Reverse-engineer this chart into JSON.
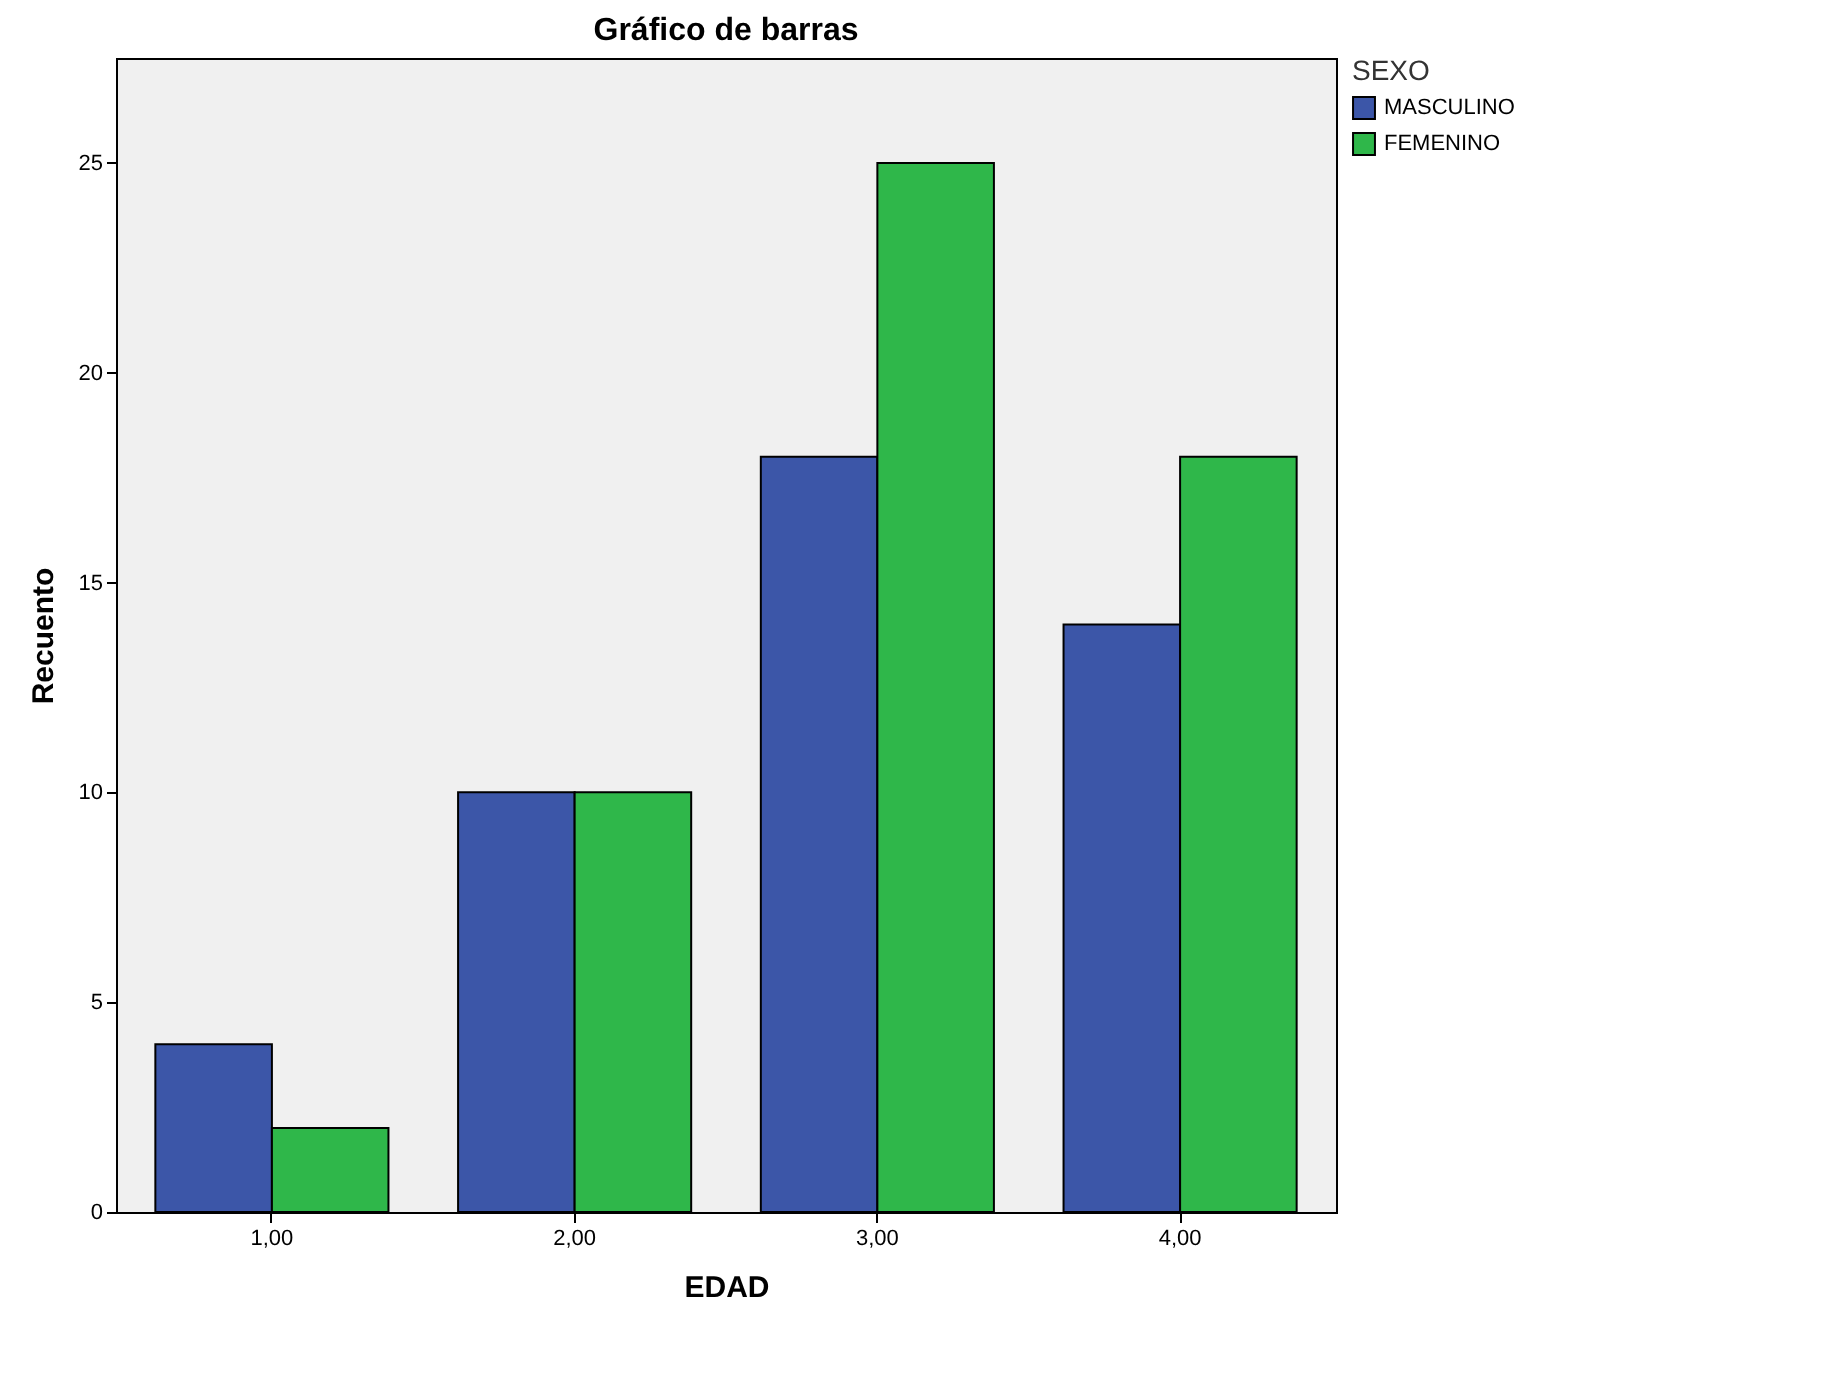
{
  "chart_data": {
    "type": "bar",
    "title": "Gráfico de barras",
    "xlabel": "EDAD",
    "ylabel": "Recuento",
    "legend_title": "SEXO",
    "categories": [
      "1,00",
      "2,00",
      "3,00",
      "4,00"
    ],
    "series": [
      {
        "name": "MASCULINO",
        "color": "#3c56a8",
        "values": [
          4,
          10,
          18,
          14
        ]
      },
      {
        "name": "FEMENINO",
        "color": "#2fb74a",
        "values": [
          2,
          10,
          25,
          18
        ]
      }
    ],
    "ylim": [
      0,
      27.5
    ],
    "yticks": [
      0,
      5,
      10,
      15,
      20,
      25
    ],
    "grid": false,
    "legend": "top right"
  }
}
